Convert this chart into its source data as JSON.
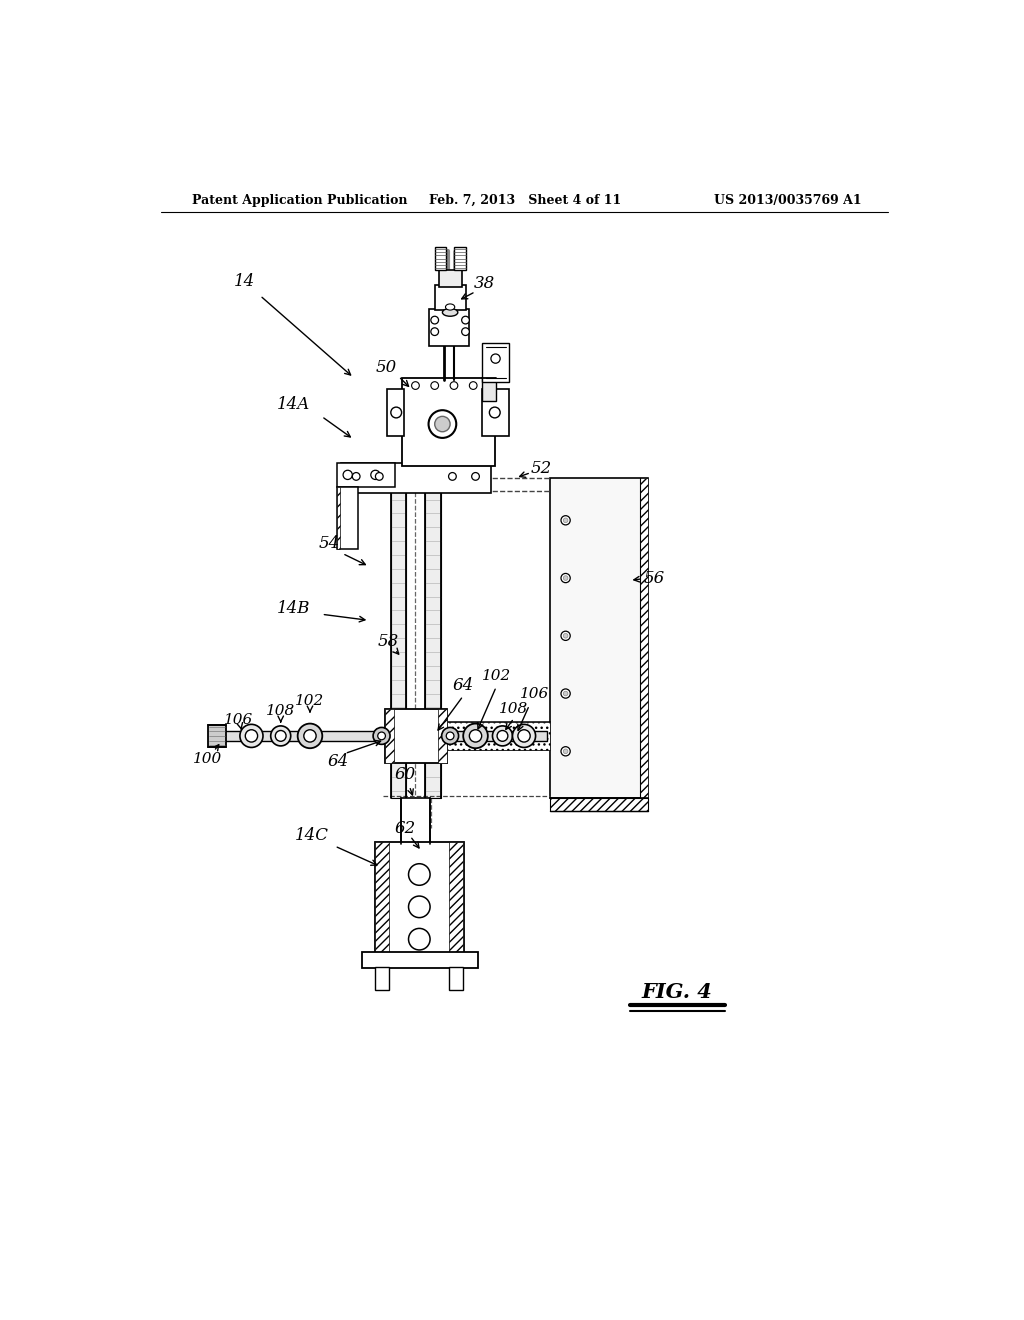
{
  "bg_color": "#ffffff",
  "header_left": "Patent Application Publication",
  "header_mid": "Feb. 7, 2013   Sheet 4 of 11",
  "header_right": "US 2013/0035769 A1",
  "fig_label": "FIG. 4"
}
